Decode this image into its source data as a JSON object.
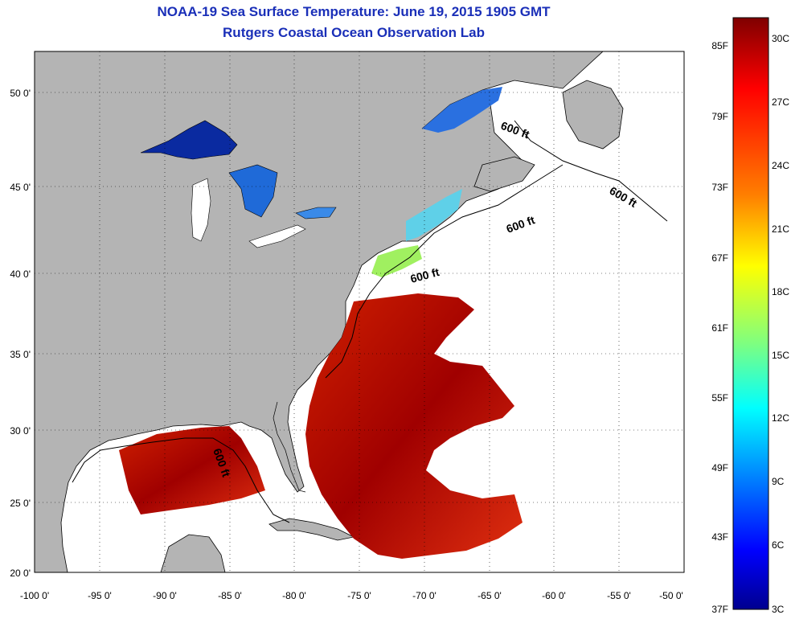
{
  "header": {
    "title": "NOAA-19 Sea Surface Temperature:  June 19, 2015 1905 GMT",
    "subtitle": "Rutgers Coastal Ocean Observation Lab"
  },
  "map": {
    "lat_labels": [
      "50 0'",
      "45 0'",
      "40 0'",
      "35 0'",
      "30 0'",
      "25 0'",
      "20 0'"
    ],
    "lon_labels": [
      "-100 0'",
      "-95 0'",
      "-90 0'",
      "-85 0'",
      "-80 0'",
      "-75 0'",
      "-70 0'",
      "-65 0'",
      "-60 0'",
      "-55 0'",
      "-50 0'"
    ],
    "contour_label": "600 ft",
    "colors": {
      "land": "#b4b4b4",
      "ocean_nodata": "#ffffff"
    }
  },
  "colorbar": {
    "fahrenheit_labels": [
      "85F",
      "79F",
      "73F",
      "67F",
      "61F",
      "55F",
      "49F",
      "43F",
      "37F"
    ],
    "celsius_labels": [
      "30C",
      "27C",
      "24C",
      "21C",
      "18C",
      "15C",
      "12C",
      "9C",
      "6C",
      "3C"
    ],
    "colormap": [
      "#7f0000",
      "#ff0000",
      "#ff7f00",
      "#ffff00",
      "#7fff7f",
      "#00ffff",
      "#007fff",
      "#0000ff",
      "#00008f"
    ]
  }
}
